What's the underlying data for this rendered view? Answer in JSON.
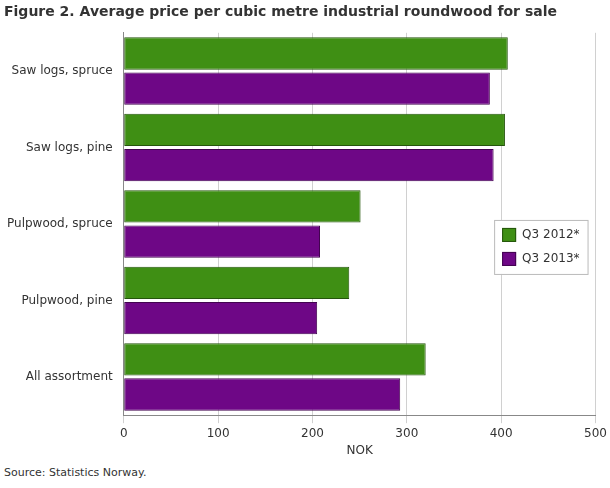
{
  "chart_data": {
    "type": "bar",
    "orientation": "horizontal",
    "title": "Figure 2. Average price per cubic metre industrial roundwood for sale",
    "x_label": "NOK",
    "source": "Source: Statistics Norway.",
    "categories": [
      "Saw logs, spruce",
      "Saw logs, pine",
      "Pulpwood, spruce",
      "Pulpwood, pine",
      "All assortment"
    ],
    "series": [
      {
        "name": "Q3 2012*",
        "color": "#3f8f14",
        "values": [
          407,
          404,
          251,
          239,
          320
        ]
      },
      {
        "name": "Q3 2013*",
        "color": "#6e0786",
        "values": [
          388,
          392,
          208,
          205,
          293
        ]
      }
    ],
    "xlim": [
      0,
      500
    ],
    "xticks": [
      0,
      100,
      200,
      300,
      400,
      500
    ],
    "grid": true,
    "legend": "right"
  }
}
